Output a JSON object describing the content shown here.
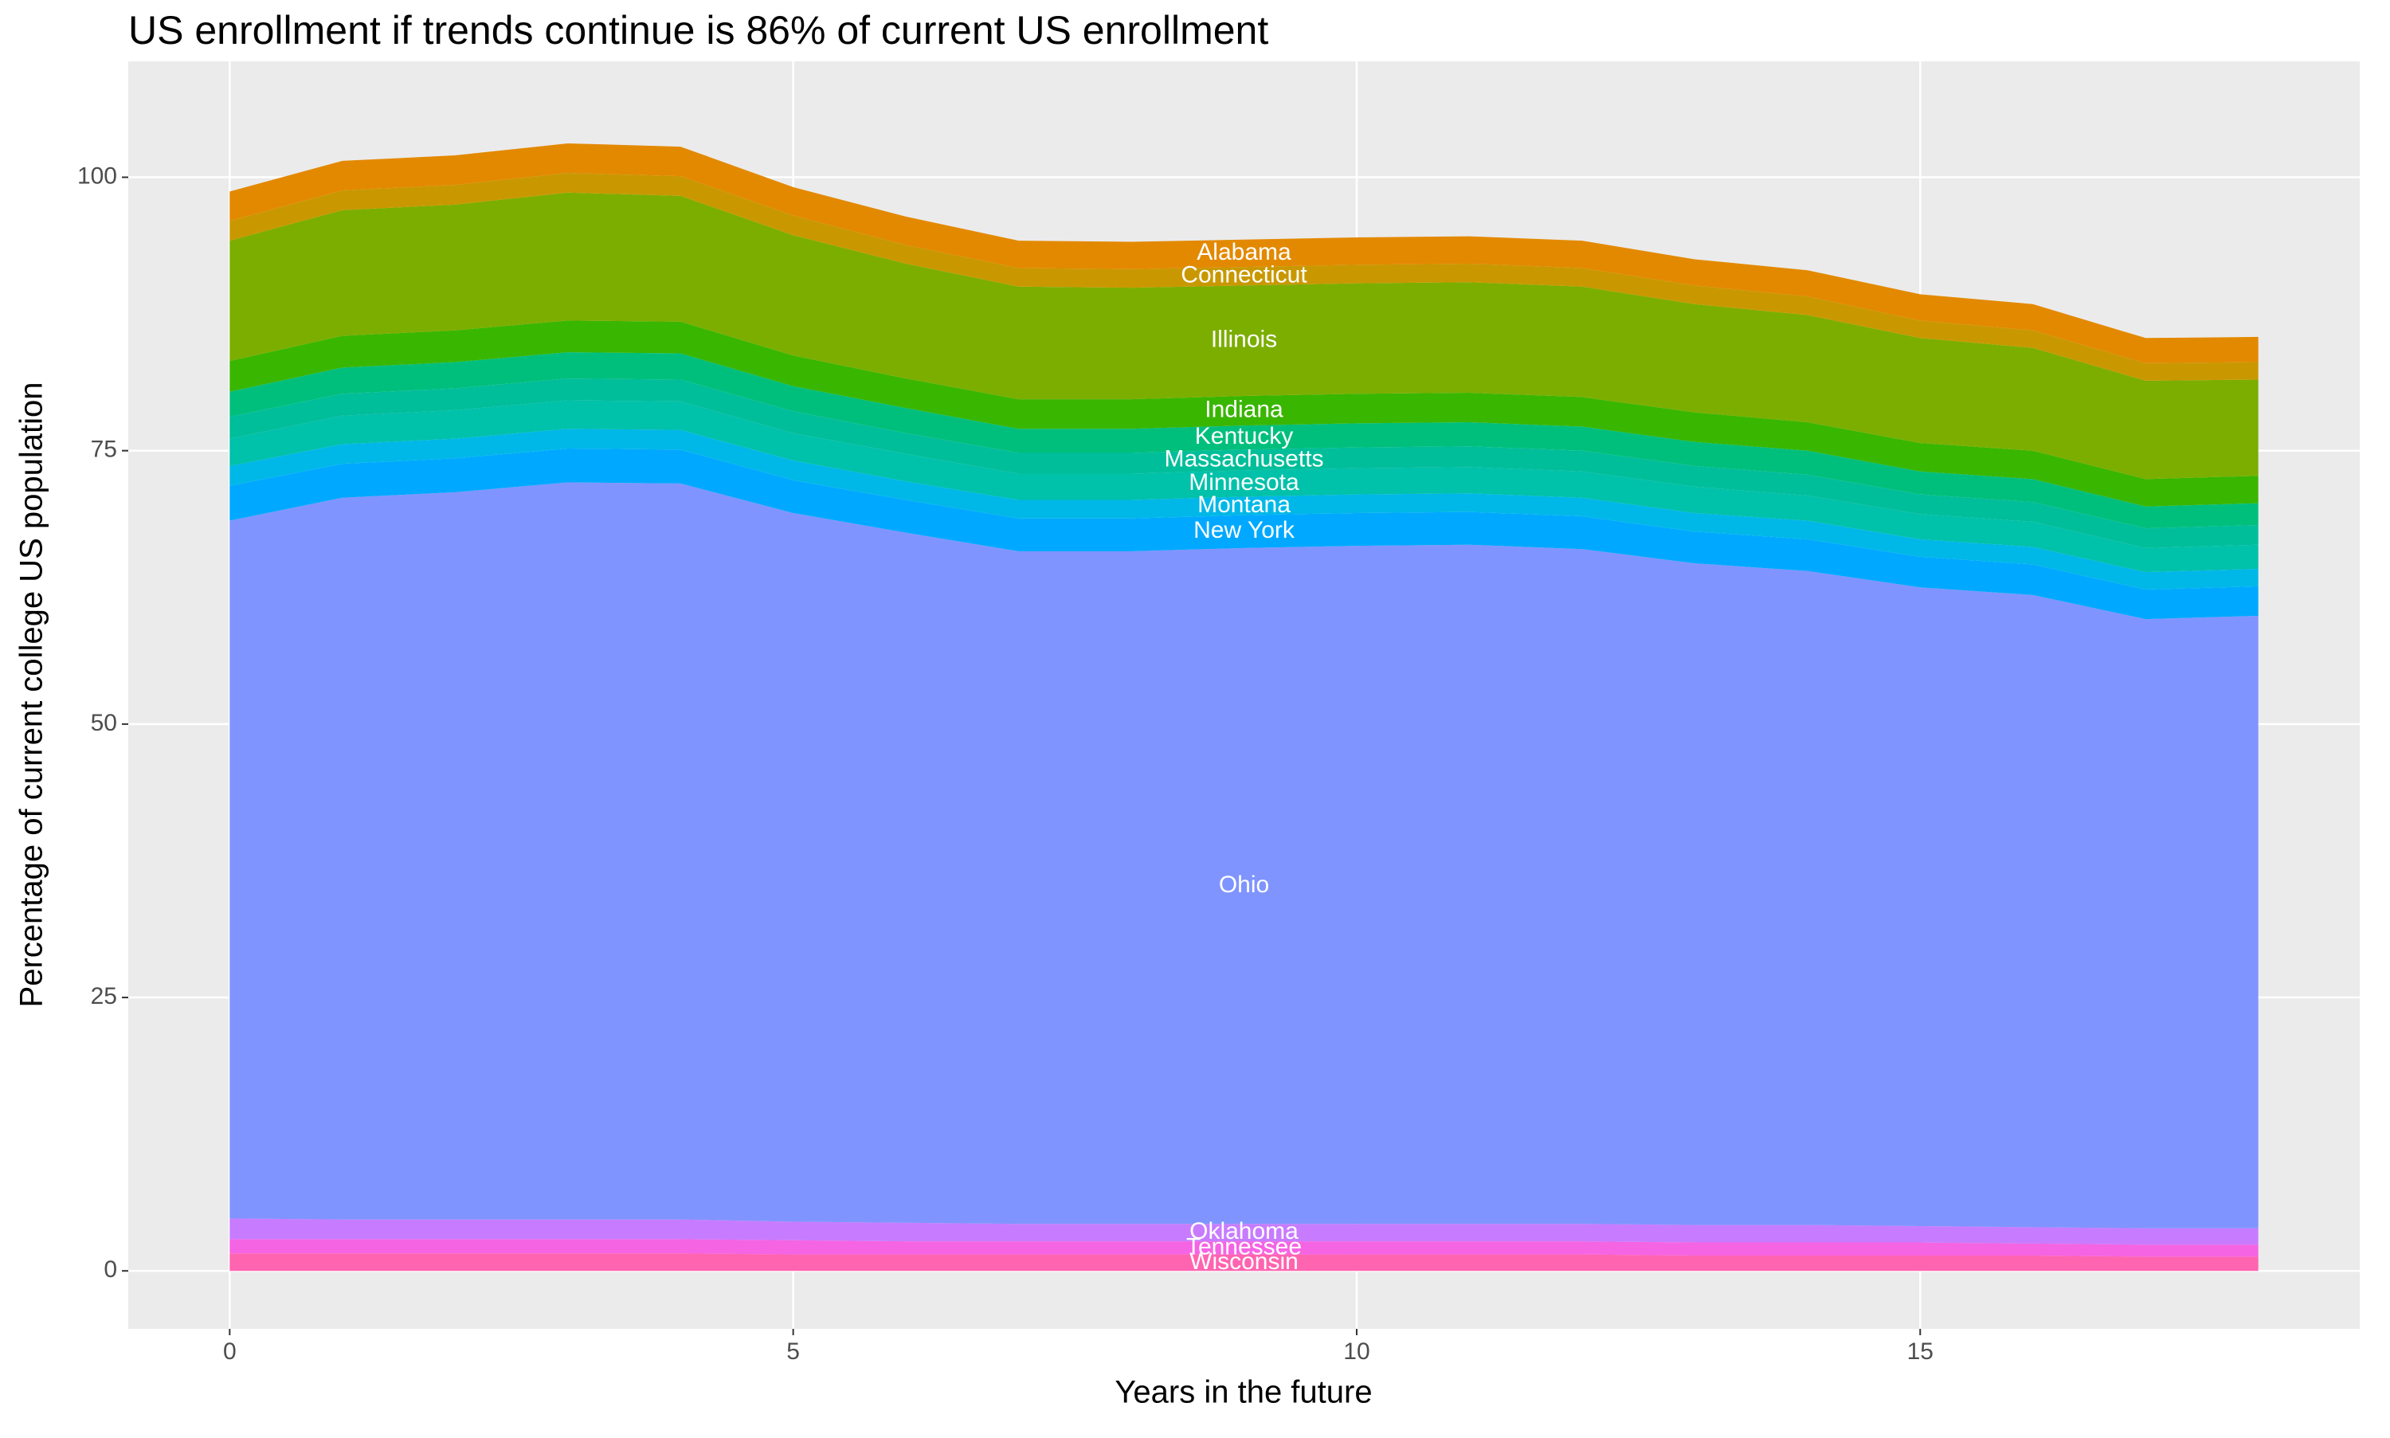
{
  "chart_data": {
    "type": "stacked_area",
    "title": "US enrollment if trends continue is 86% of current US enrollment",
    "x_label": "Years in the future",
    "y_label": "Percentage of current college US population",
    "x": [
      0,
      1,
      2,
      3,
      4,
      5,
      6,
      7,
      8,
      9,
      10,
      11,
      12,
      13,
      14,
      15,
      16,
      17,
      18
    ],
    "xlim": [
      -0.9,
      18.9
    ],
    "xticks": [
      0,
      5,
      10,
      15
    ],
    "ylim": [
      -5.3,
      110.6
    ],
    "yticks": [
      0,
      25,
      50,
      75,
      100
    ],
    "grid": true,
    "label_x": 9,
    "series": [
      {
        "name": "Wisconsin",
        "color": "#FF64B0",
        "values": [
          1.6,
          1.6,
          1.6,
          1.6,
          1.6,
          1.5,
          1.5,
          1.5,
          1.5,
          1.5,
          1.5,
          1.5,
          1.5,
          1.4,
          1.4,
          1.4,
          1.4,
          1.3,
          1.3
        ]
      },
      {
        "name": "Tennessee",
        "color": "#F564E3",
        "values": [
          1.3,
          1.3,
          1.3,
          1.3,
          1.3,
          1.3,
          1.2,
          1.2,
          1.2,
          1.2,
          1.2,
          1.2,
          1.2,
          1.2,
          1.2,
          1.2,
          1.1,
          1.1,
          1.1
        ]
      },
      {
        "name": "Oklahoma",
        "color": "#C77CFF",
        "values": [
          1.9,
          1.8,
          1.8,
          1.8,
          1.8,
          1.7,
          1.7,
          1.6,
          1.6,
          1.6,
          1.6,
          1.6,
          1.6,
          1.6,
          1.6,
          1.5,
          1.5,
          1.5,
          1.5
        ]
      },
      {
        "name": "Ohio",
        "color": "#8094FF",
        "values": [
          63.8,
          66.0,
          66.5,
          67.4,
          67.3,
          64.8,
          63.1,
          61.5,
          61.5,
          61.8,
          62.0,
          62.1,
          61.7,
          60.5,
          59.8,
          58.4,
          57.8,
          55.7,
          56.0
        ]
      },
      {
        "name": "New York",
        "color": "#00A9FF",
        "values": [
          3.2,
          3.1,
          3.1,
          3.1,
          3.1,
          3.0,
          3.0,
          3.0,
          3.0,
          3.0,
          3.0,
          3.0,
          3.0,
          2.9,
          2.9,
          2.8,
          2.8,
          2.7,
          2.7
        ]
      },
      {
        "name": "Montana",
        "color": "#00B8E7",
        "values": [
          1.8,
          1.8,
          1.8,
          1.8,
          1.8,
          1.8,
          1.7,
          1.7,
          1.7,
          1.7,
          1.7,
          1.7,
          1.7,
          1.7,
          1.7,
          1.6,
          1.6,
          1.6,
          1.6
        ]
      },
      {
        "name": "Minnesota",
        "color": "#00C1AA",
        "values": [
          2.5,
          2.6,
          2.6,
          2.6,
          2.6,
          2.5,
          2.5,
          2.4,
          2.4,
          2.4,
          2.4,
          2.4,
          2.4,
          2.4,
          2.3,
          2.3,
          2.3,
          2.2,
          2.2
        ]
      },
      {
        "name": "Massachusetts",
        "color": "#00BE9A",
        "values": [
          2.0,
          2.0,
          2.0,
          2.0,
          2.0,
          2.0,
          1.9,
          1.9,
          1.9,
          1.9,
          1.9,
          1.9,
          1.9,
          1.9,
          1.9,
          1.8,
          1.8,
          1.8,
          1.8
        ]
      },
      {
        "name": "Kentucky",
        "color": "#00BF7D",
        "values": [
          2.3,
          2.4,
          2.4,
          2.4,
          2.4,
          2.3,
          2.3,
          2.2,
          2.2,
          2.2,
          2.2,
          2.2,
          2.2,
          2.2,
          2.2,
          2.1,
          2.1,
          2.0,
          2.0
        ]
      },
      {
        "name": "Indiana",
        "color": "#39B600",
        "values": [
          2.8,
          2.9,
          2.9,
          2.9,
          2.9,
          2.8,
          2.7,
          2.7,
          2.7,
          2.7,
          2.7,
          2.7,
          2.7,
          2.7,
          2.6,
          2.6,
          2.6,
          2.5,
          2.5
        ]
      },
      {
        "name": "Illinois",
        "color": "#7CAE00",
        "values": [
          11.0,
          11.5,
          11.5,
          11.7,
          11.5,
          11.0,
          10.5,
          10.3,
          10.2,
          10.1,
          10.1,
          10.1,
          10.1,
          9.9,
          9.8,
          9.6,
          9.4,
          9.0,
          8.8
        ]
      },
      {
        "name": "Connecticut",
        "color": "#C99800",
        "values": [
          1.8,
          1.8,
          1.8,
          1.8,
          1.8,
          1.8,
          1.7,
          1.7,
          1.7,
          1.7,
          1.7,
          1.7,
          1.7,
          1.7,
          1.7,
          1.6,
          1.6,
          1.6,
          1.6
        ]
      },
      {
        "name": "Alabama",
        "color": "#E38900",
        "values": [
          2.7,
          2.7,
          2.7,
          2.7,
          2.7,
          2.6,
          2.6,
          2.5,
          2.5,
          2.5,
          2.5,
          2.5,
          2.5,
          2.4,
          2.4,
          2.4,
          2.4,
          2.3,
          2.3
        ]
      }
    ]
  }
}
